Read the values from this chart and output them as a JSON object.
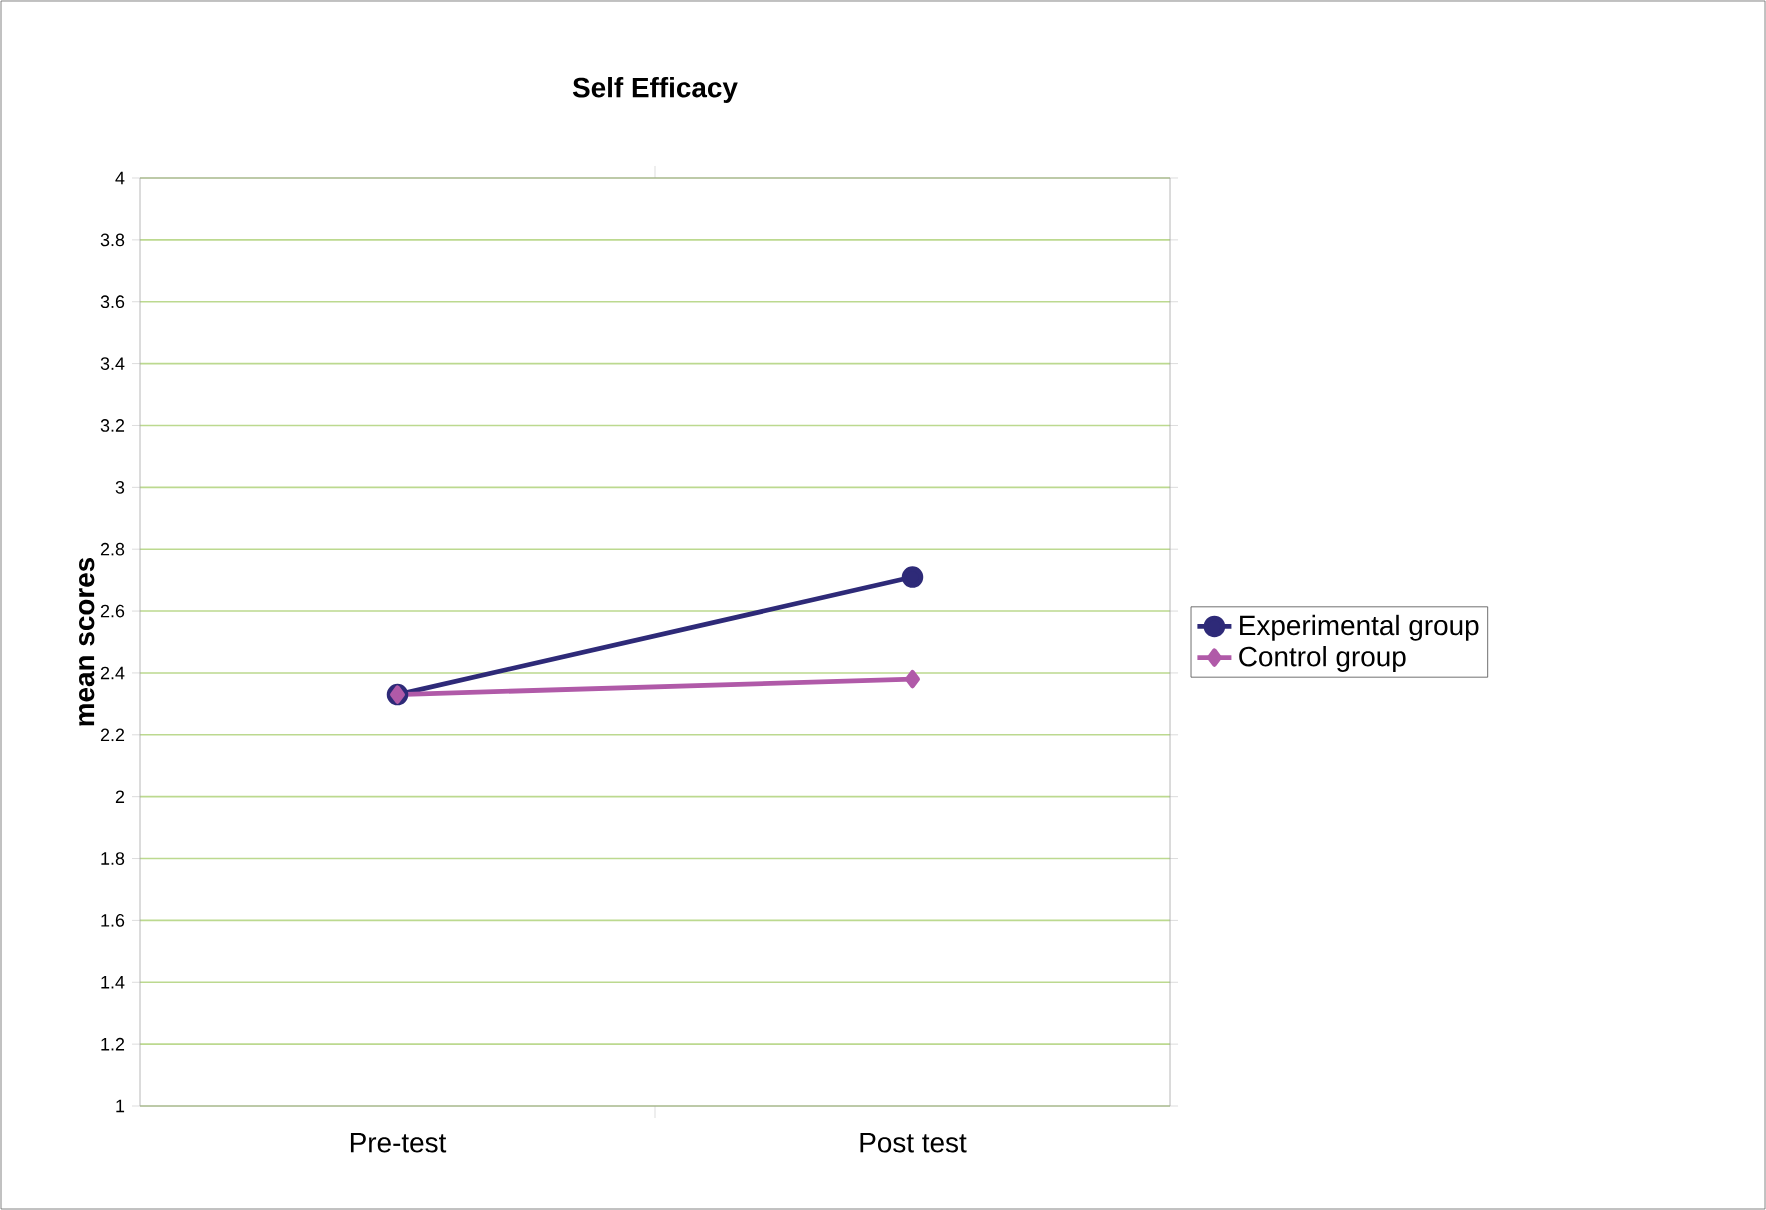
{
  "chart_data": {
    "type": "line",
    "title": "Self Efficacy",
    "ylabel": "mean scores",
    "categories": [
      "Pre-test",
      "Post test"
    ],
    "series": [
      {
        "name": "Experimental group",
        "color": "#2e2a78",
        "values": [
          2.33,
          2.71
        ],
        "marker": "circle"
      },
      {
        "name": "Control group",
        "color": "#b05aa8",
        "values": [
          2.33,
          2.38
        ],
        "marker": "diamond"
      }
    ],
    "ylim": [
      1,
      4
    ],
    "yticks": [
      1,
      1.2,
      1.4,
      1.6,
      1.8,
      2,
      2.2,
      2.4,
      2.6,
      2.8,
      3,
      3.2,
      3.4,
      3.6,
      3.8,
      4
    ],
    "grid": "y",
    "legend": "right",
    "line_style": "solid"
  }
}
